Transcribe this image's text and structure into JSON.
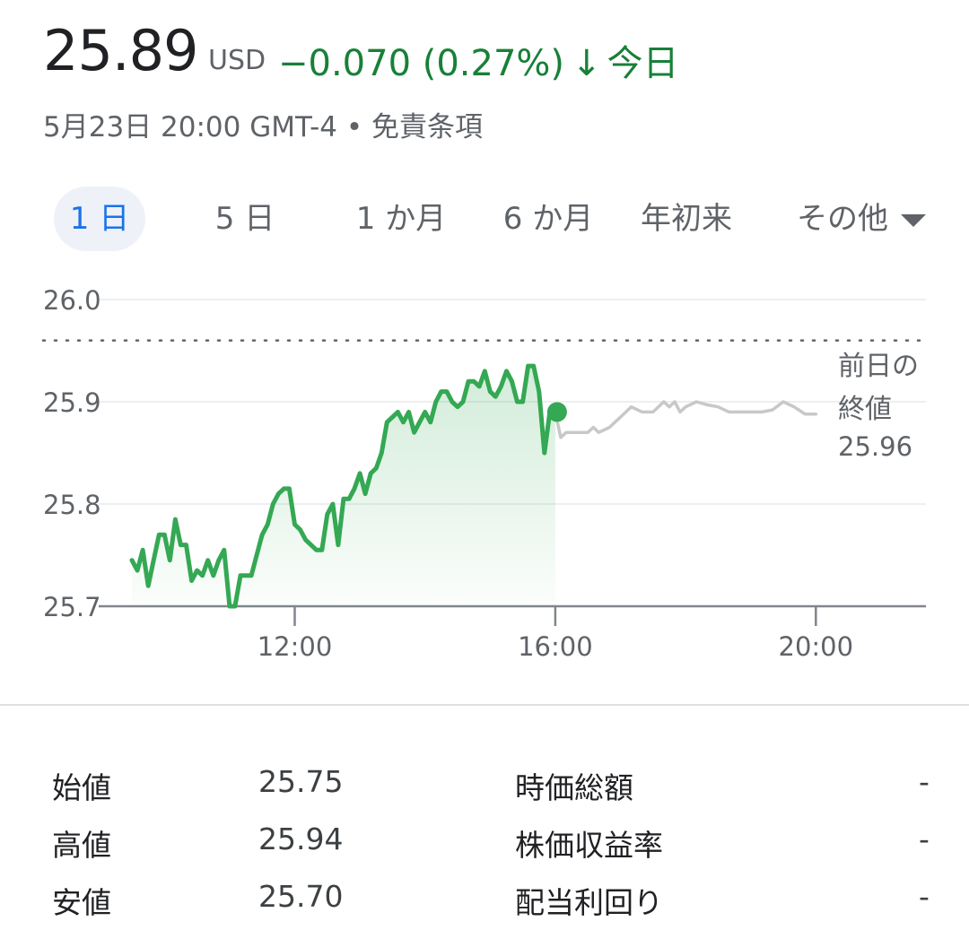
{
  "quote": {
    "price": "25.89",
    "currency": "USD",
    "change": "−0.070 (0.27%)",
    "change_arrow": "↓",
    "period": "今日",
    "timestamp": "5月23日 20:00 GMT-4",
    "separator": "•",
    "disclaimer": "免責条項",
    "color_down": "#188038"
  },
  "tabs": [
    {
      "label": "1 日",
      "active": true
    },
    {
      "label": "5 日",
      "active": false
    },
    {
      "label": "1 か月",
      "active": false
    },
    {
      "label": "6 か月",
      "active": false
    },
    {
      "label": "年初来",
      "active": false
    },
    {
      "label": "その他",
      "active": false
    }
  ],
  "chart_data": {
    "type": "line",
    "ylim": [
      25.7,
      26.0
    ],
    "y_ticks": [
      "26.0",
      "25.9",
      "25.8",
      "25.7"
    ],
    "x_ticks": [
      "12:00",
      "16:00",
      "20:00"
    ],
    "prev_close": {
      "label_line1": "前日の",
      "label_line2": "終値",
      "value": 25.96,
      "value_text": "25.96"
    },
    "series": [
      {
        "segment": "regular-session",
        "color": "#34a853",
        "x": [
          "9:30",
          "9:35",
          "9:40",
          "9:45",
          "9:50",
          "9:55",
          "10:00",
          "10:05",
          "10:10",
          "10:15",
          "10:20",
          "10:25",
          "10:30",
          "10:35",
          "10:40",
          "10:45",
          "10:50",
          "10:55",
          "11:00",
          "11:05",
          "11:10",
          "11:15",
          "11:20",
          "11:25",
          "11:30",
          "11:35",
          "11:40",
          "11:45",
          "11:50",
          "11:55",
          "12:00",
          "12:05",
          "12:10",
          "12:15",
          "12:20",
          "12:25",
          "12:30",
          "12:35",
          "12:40",
          "12:45",
          "12:50",
          "12:55",
          "13:00",
          "13:05",
          "13:10",
          "13:15",
          "13:20",
          "13:25",
          "13:30",
          "13:35",
          "13:40",
          "13:45",
          "13:50",
          "13:55",
          "14:00",
          "14:05",
          "14:10",
          "14:15",
          "14:20",
          "14:25",
          "14:30",
          "14:35",
          "14:40",
          "14:45",
          "14:50",
          "14:55",
          "15:00",
          "15:05",
          "15:10",
          "15:15",
          "15:20",
          "15:25",
          "15:30",
          "15:35",
          "15:40",
          "15:45",
          "15:50",
          "15:55",
          "16:00"
        ],
        "values": [
          25.745,
          25.735,
          25.755,
          25.72,
          25.745,
          25.77,
          25.77,
          25.745,
          25.785,
          25.76,
          25.76,
          25.725,
          25.735,
          25.73,
          25.745,
          25.73,
          25.745,
          25.755,
          25.7,
          25.7,
          25.73,
          25.73,
          25.73,
          25.75,
          25.77,
          25.78,
          25.8,
          25.81,
          25.815,
          25.815,
          25.78,
          25.775,
          25.765,
          25.76,
          25.755,
          25.755,
          25.79,
          25.8,
          25.76,
          25.805,
          25.805,
          25.815,
          25.83,
          25.81,
          25.83,
          25.835,
          25.85,
          25.88,
          25.885,
          25.89,
          25.88,
          25.89,
          25.87,
          25.88,
          25.89,
          25.88,
          25.9,
          25.91,
          25.91,
          25.9,
          25.895,
          25.9,
          25.92,
          25.92,
          25.915,
          25.93,
          25.91,
          25.905,
          25.915,
          25.93,
          25.92,
          25.9,
          25.9,
          25.935,
          25.935,
          25.91,
          25.85,
          25.89,
          25.89
        ]
      },
      {
        "segment": "after-hours",
        "color": "#c8c8c8",
        "x": [
          "16:00",
          "16:05",
          "16:10",
          "16:20",
          "16:30",
          "16:35",
          "16:40",
          "16:50",
          "16:55",
          "17:00",
          "17:10",
          "17:20",
          "17:30",
          "17:40",
          "17:45",
          "17:50",
          "17:55",
          "18:00",
          "18:10",
          "18:20",
          "18:30",
          "18:40",
          "18:50",
          "19:00",
          "19:10",
          "19:20",
          "19:30",
          "19:40",
          "19:50",
          "20:00"
        ],
        "values": [
          25.89,
          25.865,
          25.87,
          25.87,
          25.87,
          25.875,
          25.87,
          25.875,
          25.88,
          25.885,
          25.895,
          25.89,
          25.89,
          25.9,
          25.895,
          25.9,
          25.89,
          25.895,
          25.9,
          25.897,
          25.895,
          25.89,
          25.89,
          25.89,
          25.89,
          25.892,
          25.9,
          25.895,
          25.888,
          25.888
        ]
      }
    ],
    "last_point": {
      "x": "16:00",
      "value": 25.89,
      "color": "#34a853"
    }
  },
  "stats": {
    "left": [
      {
        "label": "始値",
        "value": "25.75"
      },
      {
        "label": "高値",
        "value": "25.94"
      },
      {
        "label": "安値",
        "value": "25.70"
      }
    ],
    "right": [
      {
        "label": "時価総額",
        "value": "-"
      },
      {
        "label": "株価収益率",
        "value": "-"
      },
      {
        "label": "配当利回り",
        "value": "-"
      }
    ]
  }
}
